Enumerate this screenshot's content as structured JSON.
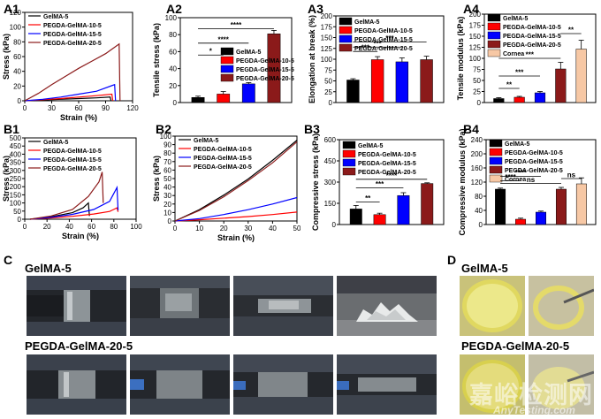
{
  "colors": {
    "gelma": "#000000",
    "p10": "#ff0000",
    "p15": "#0000ff",
    "p20": "#8b1a1a",
    "cornea": "#f7c8a5"
  },
  "series_names": [
    "GelMA-5",
    "PEGDA-GelMA-10-5",
    "PEGDA-GelMA-15-5",
    "PEGDA-GelMA-20-5"
  ],
  "cornea_label": "Cornea",
  "panels": {
    "A1": "A1",
    "A2": "A2",
    "A3": "A3",
    "A4": "A4",
    "B1": "B1",
    "B2": "B2",
    "B3": "B3",
    "B4": "B4",
    "C": "C",
    "D": "D"
  },
  "chart_data": [
    {
      "id": "A1",
      "type": "line",
      "xlabel": "Strain (%)",
      "ylabel": "Stress (kPa)",
      "xlim": [
        0,
        120
      ],
      "ylim": [
        0,
        120
      ],
      "xticks": [
        "0",
        "30",
        "60",
        "90",
        "120"
      ],
      "yticks": [
        "0",
        "20",
        "40",
        "60",
        "80",
        "100",
        "120"
      ],
      "series": [
        {
          "name": "GelMA-5",
          "x": [
            0,
            20,
            40,
            60,
            80,
            95,
            96
          ],
          "y": [
            0,
            1,
            2,
            3,
            4,
            5,
            0
          ]
        },
        {
          "name": "PEGDA-GelMA-10-5",
          "x": [
            0,
            20,
            40,
            60,
            80,
            97,
            98
          ],
          "y": [
            0,
            1.5,
            3,
            5,
            7,
            9,
            0
          ]
        },
        {
          "name": "PEGDA-GelMA-15-5",
          "x": [
            0,
            20,
            40,
            60,
            80,
            100,
            101
          ],
          "y": [
            0,
            2,
            5,
            9,
            13,
            22,
            0
          ]
        },
        {
          "name": "PEGDA-GelMA-20-5",
          "x": [
            0,
            15,
            30,
            45,
            60,
            75,
            90,
            105,
            106
          ],
          "y": [
            0,
            10,
            22,
            33,
            44,
            54,
            64,
            77,
            0
          ]
        }
      ]
    },
    {
      "id": "A2",
      "type": "bar",
      "ylabel": "Tensile stress (kPa)",
      "ylim": [
        0,
        100
      ],
      "yticks": [
        "0",
        "20",
        "40",
        "60",
        "80",
        "100"
      ],
      "categories": [
        "GelMA-5",
        "PEGDA-GelMA-10-5",
        "PEGDA-GelMA-15-5",
        "PEGDA-GelMA-20-5"
      ],
      "values": [
        6,
        10,
        22,
        81
      ],
      "errors": [
        1.5,
        3,
        1.5,
        4
      ],
      "sig": [
        "*",
        "****",
        "****"
      ]
    },
    {
      "id": "A3",
      "type": "bar",
      "ylabel": "Elongation at break (%)",
      "ylim": [
        0,
        200
      ],
      "yticks": [
        "0",
        "25",
        "50",
        "75",
        "100",
        "125",
        "150",
        "175",
        "200"
      ],
      "categories": [
        "GelMA-5",
        "PEGDA-GelMA-10-5",
        "PEGDA-GelMA-15-5",
        "PEGDA-GelMA-20-5"
      ],
      "values": [
        52,
        99,
        94,
        99
      ],
      "errors": [
        3,
        7,
        9,
        8
      ],
      "sig": [
        "***",
        "***",
        "***"
      ]
    },
    {
      "id": "A4",
      "type": "bar",
      "ylabel": "Tensile modulus (kPa)",
      "ylim": [
        0,
        200
      ],
      "yticks": [
        "0",
        "25",
        "50",
        "75",
        "100",
        "125",
        "150",
        "175",
        "200"
      ],
      "categories": [
        "GelMA-5",
        "PEGDA-GelMA-10-5",
        "PEGDA-GelMA-15-5",
        "PEGDA-GelMA-20-5",
        "Cornea"
      ],
      "values": [
        9,
        12,
        22,
        76,
        121
      ],
      "errors": [
        2,
        2,
        3,
        15,
        20
      ],
      "sig": [
        "**",
        "***",
        "***",
        "**"
      ]
    },
    {
      "id": "B1",
      "type": "line",
      "xlabel": "Strain (%)",
      "ylabel": "Stress (kPa)",
      "xlim": [
        -5,
        100
      ],
      "ylim": [
        0,
        500
      ],
      "xticks": [
        "0",
        "20",
        "40",
        "60",
        "80",
        "100"
      ],
      "yticks": [
        "0",
        "50",
        "100",
        "150",
        "200",
        "250",
        "300",
        "350",
        "400",
        "450",
        "500"
      ],
      "series": [
        {
          "name": "GelMA-5",
          "x": [
            0,
            20,
            40,
            50,
            55,
            56
          ],
          "y": [
            0,
            15,
            40,
            70,
            100,
            20
          ]
        },
        {
          "name": "PEGDA-GelMA-10-5",
          "x": [
            0,
            20,
            40,
            60,
            75,
            82,
            83
          ],
          "y": [
            0,
            8,
            18,
            32,
            48,
            70,
            45
          ]
        },
        {
          "name": "PEGDA-GelMA-15-5",
          "x": [
            0,
            20,
            40,
            60,
            75,
            82,
            83
          ],
          "y": [
            0,
            12,
            30,
            60,
            110,
            195,
            55
          ]
        },
        {
          "name": "PEGDA-GelMA-20-5",
          "x": [
            0,
            20,
            40,
            55,
            65,
            68,
            69
          ],
          "y": [
            0,
            20,
            60,
            140,
            230,
            290,
            100
          ]
        }
      ]
    },
    {
      "id": "B2",
      "type": "line",
      "xlabel": "Strain (%)",
      "ylabel": "Stress (kPa)",
      "xlim": [
        0,
        50
      ],
      "ylim": [
        0,
        105
      ],
      "xticks": [
        "0",
        "10",
        "20",
        "30",
        "40",
        "50"
      ],
      "yticks": [
        "0",
        "10",
        "20",
        "30",
        "40",
        "50",
        "60",
        "70",
        "80",
        "90",
        "100"
      ],
      "series": [
        {
          "name": "GelMA-5",
          "x": [
            0,
            10,
            20,
            30,
            40,
            50
          ],
          "y": [
            0,
            14,
            32,
            52,
            75,
            100
          ]
        },
        {
          "name": "PEGDA-GelMA-10-5",
          "x": [
            0,
            10,
            20,
            30,
            40,
            50
          ],
          "y": [
            0,
            1.5,
            3.5,
            5.5,
            8,
            11
          ]
        },
        {
          "name": "PEGDA-GelMA-15-5",
          "x": [
            0,
            10,
            20,
            30,
            40,
            50
          ],
          "y": [
            0,
            3,
            8,
            14,
            21,
            29
          ]
        },
        {
          "name": "PEGDA-GelMA-20-5",
          "x": [
            0,
            10,
            20,
            30,
            40,
            50
          ],
          "y": [
            0,
            13,
            30,
            50,
            72,
            98
          ]
        }
      ]
    },
    {
      "id": "B3",
      "type": "bar",
      "ylabel": "Compressive stress (kPa)",
      "ylim": [
        0,
        600
      ],
      "yticks": [
        "0",
        "150",
        "300",
        "450",
        "600"
      ],
      "categories": [
        "GelMA-5",
        "PEGDA-GelMA-10-5",
        "PEGDA-GelMA-15-5",
        "PEGDA-GelMA-20-5"
      ],
      "values": [
        110,
        70,
        205,
        290
      ],
      "errors": [
        25,
        10,
        20,
        5
      ],
      "sig": [
        "**",
        "***",
        "****"
      ]
    },
    {
      "id": "B4",
      "type": "bar",
      "ylabel": "Compressive modulus (kPa)",
      "ylim": [
        0,
        240
      ],
      "yticks": [
        "0",
        "40",
        "80",
        "120",
        "160",
        "200",
        "240"
      ],
      "categories": [
        "GelMA-5",
        "PEGDA-GelMA-10-5",
        "PEGDA-GelMA-15-5",
        "PEGDA-GelMA-20-5",
        "Cornea"
      ],
      "values": [
        100,
        15,
        35,
        100,
        115
      ],
      "errors": [
        3,
        3,
        3,
        5,
        17
      ],
      "sig": [
        "****",
        "****",
        "ns",
        "ns"
      ]
    }
  ],
  "photos": {
    "c_label_top": "GelMA-5",
    "c_label_bottom": "PEGDA-GelMA-20-5",
    "d_label_top": "GelMA-5",
    "d_label_bottom": "PEGDA-GelMA-20-5",
    "watermark_cn": "嘉峪检测网",
    "watermark_en": "AnyTesting.com"
  }
}
